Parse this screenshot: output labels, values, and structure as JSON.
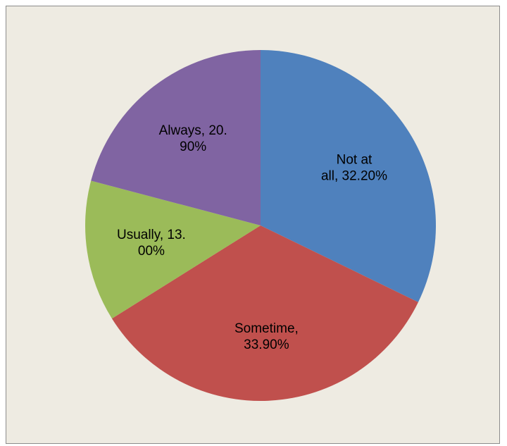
{
  "chart_data": {
    "type": "pie",
    "title": "",
    "slices": [
      {
        "name": "Not at all",
        "value": 32.2,
        "color": "#4f81bd",
        "label_lines": [
          "Not at",
          "all, 32.20%"
        ]
      },
      {
        "name": "Sometime",
        "value": 33.9,
        "color": "#c0504d",
        "label_lines": [
          "Sometime,",
          "33.90%"
        ]
      },
      {
        "name": "Usually",
        "value": 13.0,
        "color": "#9bbb59",
        "label_lines": [
          "Usually, 13.",
          "00%"
        ]
      },
      {
        "name": "Always",
        "value": 20.9,
        "color": "#8064a2",
        "label_lines": [
          "Always, 20.",
          "90%"
        ]
      }
    ],
    "start_angle": "12 o'clock",
    "direction": "clockwise",
    "legend": "none"
  }
}
